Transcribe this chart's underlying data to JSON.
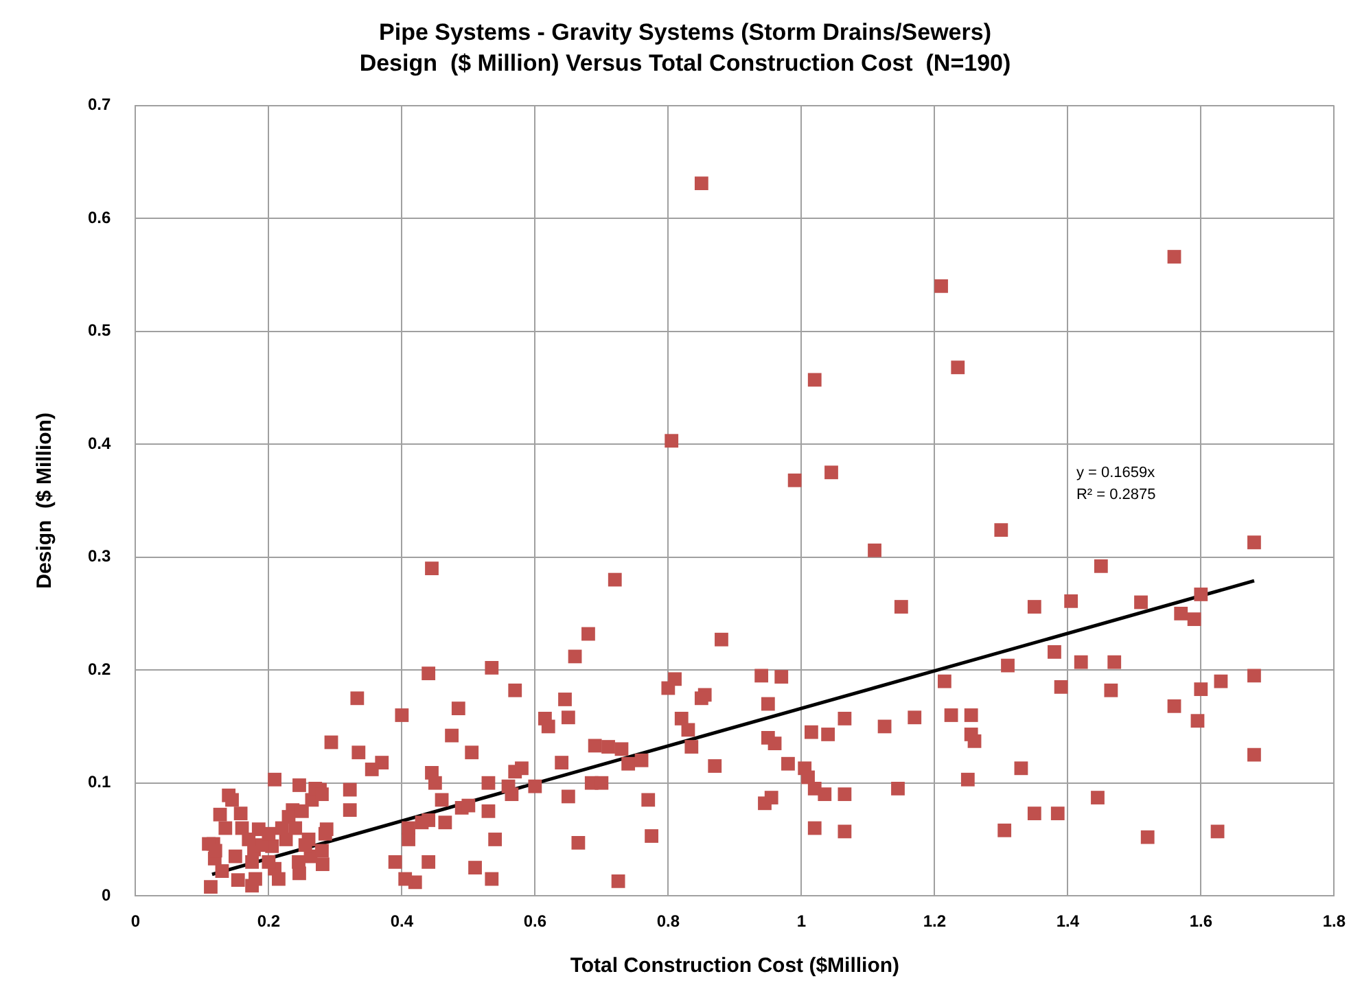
{
  "chart_data": {
    "type": "scatter",
    "title": "Pipe Systems - Gravity Systems (Storm Drains/Sewers)",
    "subtitle": "Design  ($ Million) Versus Total Construction Cost  (N=190)",
    "xlabel": "Total Construction Cost ($Million)",
    "ylabel": "Design  ($ Million)",
    "xlim": [
      0,
      1.8
    ],
    "ylim": [
      0,
      0.7
    ],
    "xticks": [
      0,
      0.2,
      0.4,
      0.6,
      0.8,
      1,
      1.2,
      1.4,
      1.6,
      1.8
    ],
    "yticks": [
      0,
      0.1,
      0.2,
      0.3,
      0.4,
      0.5,
      0.6,
      0.7
    ],
    "grid": true,
    "legend": false,
    "marker": "square",
    "annotations": [
      "y = 0.1659x",
      "R² = 0.2875"
    ],
    "series": [
      {
        "type": "scatter",
        "color": "#c0504d",
        "x": [
          0.85,
          1.21,
          1.56,
          1.235,
          1.02,
          0.805,
          0.99,
          1.045,
          1.11,
          1.3,
          1.68,
          0.445,
          1.45,
          0.72,
          1.15,
          1.35,
          1.405,
          1.51,
          1.6,
          1.57,
          1.59,
          0.68,
          0.88,
          1.38,
          1.42,
          1.47,
          0.535,
          0.44,
          0.66,
          0.94,
          0.97,
          1.31,
          1.215,
          0.81,
          0.8,
          0.855,
          0.85,
          0.57,
          0.645,
          0.95,
          1.39,
          1.465,
          1.6,
          1.63,
          1.68,
          1.56,
          0.4,
          0.485,
          0.615,
          0.62,
          0.65,
          0.82,
          0.83,
          1.065,
          1.015,
          1.04,
          1.125,
          1.17,
          1.225,
          1.255,
          1.595,
          0.475,
          0.69,
          0.71,
          0.73,
          0.95,
          0.96,
          0.835,
          1.255,
          1.26,
          1.68,
          0.505,
          0.57,
          0.58,
          0.64,
          0.74,
          0.76,
          0.87,
          0.98,
          1.005,
          1.01,
          1.33,
          0.445,
          0.45,
          0.53,
          0.565,
          0.685,
          0.7,
          0.6,
          0.65,
          1.02,
          1.035,
          1.065,
          1.145,
          1.25,
          0.955,
          0.945,
          0.49,
          0.46,
          0.53,
          0.56,
          0.77,
          0.5,
          1.445,
          1.35,
          1.385,
          0.44,
          0.43,
          0.465,
          0.665,
          0.775,
          0.54,
          0.41,
          0.41,
          1.02,
          1.065,
          1.305,
          1.52,
          1.625,
          0.39,
          0.44,
          0.42,
          0.405,
          0.51,
          0.535,
          0.725,
          0.333,
          0.294,
          0.335,
          0.37,
          0.355,
          0.209,
          0.246,
          0.277,
          0.322,
          0.322,
          0.14,
          0.158,
          0.127,
          0.185,
          0.22,
          0.236,
          0.287,
          0.26,
          0.117,
          0.119,
          0.15,
          0.178,
          0.205,
          0.226,
          0.263,
          0.281,
          0.246,
          0.209,
          0.175,
          0.113,
          0.154,
          0.13,
          0.11,
          0.12,
          0.145,
          0.16,
          0.19,
          0.18,
          0.2,
          0.23,
          0.25,
          0.265,
          0.27,
          0.28,
          0.245,
          0.255,
          0.2,
          0.17,
          0.135,
          0.175,
          0.215,
          0.24,
          0.28,
          0.285
        ],
        "values": [
          0.631,
          0.54,
          0.566,
          0.468,
          0.457,
          0.403,
          0.368,
          0.375,
          0.306,
          0.324,
          0.313,
          0.29,
          0.292,
          0.28,
          0.256,
          0.256,
          0.261,
          0.26,
          0.267,
          0.25,
          0.245,
          0.232,
          0.227,
          0.216,
          0.207,
          0.207,
          0.202,
          0.197,
          0.212,
          0.195,
          0.194,
          0.204,
          0.19,
          0.192,
          0.184,
          0.178,
          0.175,
          0.182,
          0.174,
          0.17,
          0.185,
          0.182,
          0.183,
          0.19,
          0.195,
          0.168,
          0.16,
          0.166,
          0.157,
          0.15,
          0.158,
          0.157,
          0.147,
          0.157,
          0.145,
          0.143,
          0.15,
          0.158,
          0.16,
          0.16,
          0.155,
          0.142,
          0.133,
          0.132,
          0.13,
          0.14,
          0.135,
          0.132,
          0.143,
          0.137,
          0.125,
          0.127,
          0.11,
          0.113,
          0.118,
          0.117,
          0.12,
          0.115,
          0.117,
          0.113,
          0.105,
          0.113,
          0.109,
          0.1,
          0.1,
          0.09,
          0.1,
          0.1,
          0.097,
          0.088,
          0.095,
          0.09,
          0.09,
          0.095,
          0.103,
          0.087,
          0.082,
          0.078,
          0.085,
          0.075,
          0.097,
          0.085,
          0.08,
          0.087,
          0.073,
          0.073,
          0.067,
          0.065,
          0.065,
          0.047,
          0.053,
          0.05,
          0.05,
          0.06,
          0.06,
          0.057,
          0.058,
          0.052,
          0.057,
          0.03,
          0.03,
          0.012,
          0.015,
          0.025,
          0.015,
          0.013,
          0.175,
          0.136,
          0.127,
          0.118,
          0.112,
          0.103,
          0.098,
          0.094,
          0.094,
          0.076,
          0.089,
          0.073,
          0.072,
          0.059,
          0.06,
          0.076,
          0.059,
          0.05,
          0.046,
          0.033,
          0.035,
          0.041,
          0.044,
          0.05,
          0.035,
          0.028,
          0.02,
          0.024,
          0.009,
          0.008,
          0.014,
          0.022,
          0.046,
          0.04,
          0.085,
          0.06,
          0.045,
          0.015,
          0.055,
          0.07,
          0.075,
          0.085,
          0.095,
          0.09,
          0.03,
          0.045,
          0.03,
          0.05,
          0.06,
          0.03,
          0.015,
          0.06,
          0.04,
          0.055
        ]
      },
      {
        "type": "line",
        "color": "#000000",
        "marker": "none",
        "x": [
          0.115,
          1.68
        ],
        "values": [
          0.019,
          0.279
        ]
      }
    ]
  }
}
